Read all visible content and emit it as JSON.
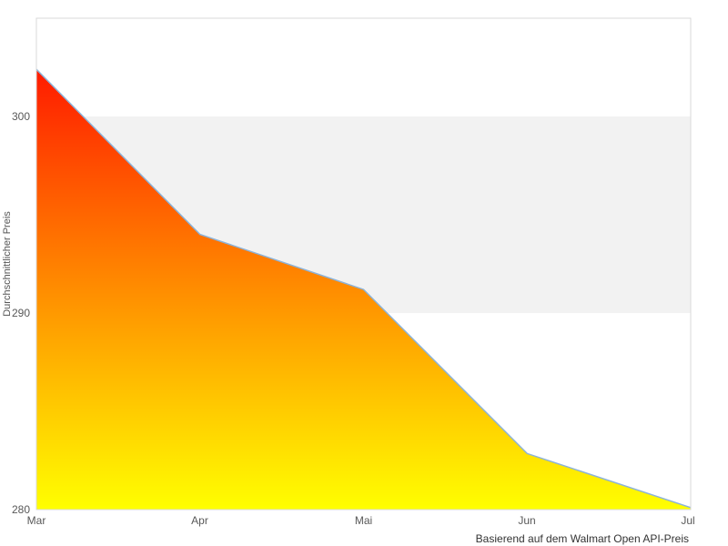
{
  "chart_data": {
    "type": "area",
    "categories": [
      "Mar",
      "Apr",
      "Mai",
      "Jun",
      "Jul"
    ],
    "values": [
      302.4,
      294.0,
      291.2,
      282.85,
      280.1
    ],
    "title": "",
    "xlabel": "",
    "ylabel": "Durchschnittlicher Preis",
    "caption": "Basierend auf dem Walmart Open API-Preis",
    "ylim": [
      280,
      305
    ],
    "yticks": [
      280,
      290,
      300
    ],
    "grid": false,
    "legend_position": "none",
    "plot_band": {
      "from": 290,
      "to": 300,
      "color": "#f2f2f2"
    },
    "area_gradient": {
      "top": "#ff0000",
      "bottom": "#ffff00"
    },
    "line_color": "#8cb3d9",
    "plot_border_color": "#d9d9d9",
    "background_color": "#ffffff"
  }
}
